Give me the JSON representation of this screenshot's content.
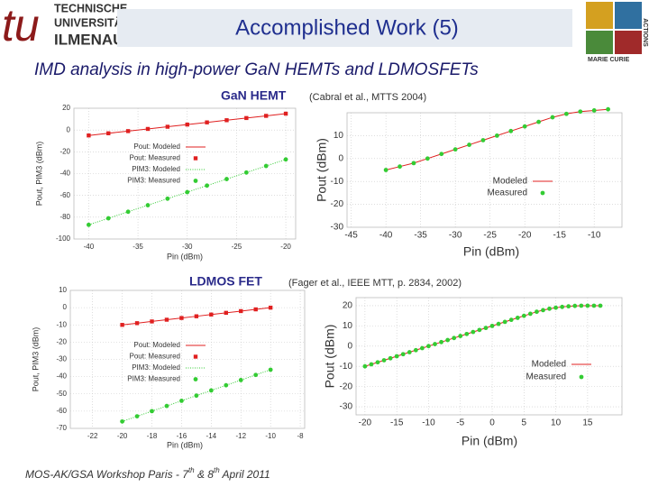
{
  "logo": {
    "lines": [
      "TECHNISCHE",
      "UNIVERSITÄT",
      "ILMENAU"
    ],
    "mark": "tu"
  },
  "partner_logo": {
    "lines": [
      "MARIE CURIE",
      "ACTIONS"
    ]
  },
  "title": "Accomplished Work (5)",
  "subtitle": "IMD analysis in high-power GaN HEMTs and LDMOSFETs",
  "sections": [
    {
      "label": "GaN HEMT",
      "source": "(Cabral et al., MTTS 2004)"
    },
    {
      "label": "LDMOS FET",
      "source": "(Fager et al., IEEE MTT, p. 2834, 2002)"
    }
  ],
  "footer": [
    "MOS-AK/GSA Workshop Paris - 7",
    "th",
    " & 8",
    "th",
    " April 2011"
  ],
  "chart_data": [
    {
      "type": "line",
      "xlabel": "Pin (dBm)",
      "ylabel": "Pout, PIM3 (dBm)",
      "xlim": [
        -41.5,
        -19
      ],
      "ylim": [
        -100,
        20
      ],
      "xticks": [
        -40,
        -35,
        -30,
        -25,
        -20
      ],
      "yticks": [
        -100,
        -80,
        -60,
        -40,
        -20,
        0,
        20
      ],
      "grid": true,
      "x": [
        -40,
        -38,
        -36,
        -34,
        -32,
        -30,
        -28,
        -26,
        -24,
        -22,
        -20
      ],
      "series": [
        {
          "name": "Pout: Modeled",
          "color": "#e02020",
          "style": "line",
          "values": [
            -5,
            -3,
            -1,
            1,
            3,
            5,
            7,
            9,
            11,
            13,
            15
          ]
        },
        {
          "name": "Pout: Measured",
          "color": "#e02020",
          "style": "square",
          "values": [
            -5,
            -3,
            -1,
            1,
            3,
            5,
            7,
            9,
            11,
            13,
            15
          ]
        },
        {
          "name": "PIM3: Modeled",
          "color": "#33cc33",
          "style": "dotted",
          "values": [
            -87,
            -81,
            -75,
            -69,
            -63,
            -57,
            -51,
            -45,
            -39,
            -33,
            -27
          ]
        },
        {
          "name": "PIM3: Measured",
          "color": "#33cc33",
          "style": "circle",
          "values": [
            -87,
            -81,
            -75,
            -69,
            -63,
            -57,
            -51,
            -45,
            -39,
            -33,
            -27
          ]
        }
      ]
    },
    {
      "type": "line",
      "xlabel": "Pin (dBm)",
      "ylabel": "Pout (dBm)",
      "xlim": [
        -45.6,
        -6
      ],
      "ylim": [
        -30,
        20
      ],
      "xticks": [
        -45,
        -40,
        -35,
        -30,
        -25,
        -20,
        -15,
        -10
      ],
      "yticks": [
        -30,
        -20,
        -10,
        0,
        10
      ],
      "grid": true,
      "x": [
        -40,
        -38,
        -36,
        -34,
        -32,
        -30,
        -28,
        -26,
        -24,
        -22,
        -20,
        -18,
        -16,
        -14,
        -12,
        -10,
        -8
      ],
      "series": [
        {
          "name": "Modeled",
          "color": "#e02020",
          "style": "line",
          "values": [
            -5,
            -3.5,
            -2,
            0,
            2,
            4,
            6,
            8,
            10,
            12,
            14,
            16,
            18,
            19.5,
            20.5,
            21,
            21.5
          ]
        },
        {
          "name": "Measured",
          "color": "#33cc33",
          "style": "circle",
          "values": [
            -5,
            -3.5,
            -2,
            0,
            2,
            4,
            6,
            8,
            10,
            12,
            14,
            16,
            18,
            19.5,
            20.5,
            21,
            21.5
          ]
        }
      ]
    },
    {
      "type": "line",
      "xlabel": "Pin (dBm)",
      "ylabel": "Pout, PIM3 (dBm)",
      "xlim": [
        -23.5,
        -7.7
      ],
      "ylim": [
        -70,
        10
      ],
      "xticks": [
        -22,
        -20,
        -18,
        -16,
        -14,
        -12,
        -10,
        -8
      ],
      "yticks": [
        -70,
        -60,
        -50,
        -40,
        -30,
        -20,
        -10,
        0,
        10
      ],
      "grid": true,
      "x": [
        -20,
        -19,
        -18,
        -17,
        -16,
        -15,
        -14,
        -13,
        -12,
        -11,
        -10
      ],
      "series": [
        {
          "name": "Pout: Modeled",
          "color": "#e02020",
          "style": "line",
          "values": [
            -10,
            -9,
            -8,
            -7,
            -6,
            -5,
            -4,
            -3,
            -2,
            -1,
            0
          ]
        },
        {
          "name": "Pout: Measured",
          "color": "#e02020",
          "style": "square",
          "values": [
            -10,
            -9,
            -8,
            -7,
            -6,
            -5,
            -4,
            -3,
            -2,
            -1,
            0
          ]
        },
        {
          "name": "PIM3: Modeled",
          "color": "#33cc33",
          "style": "dotted",
          "values": [
            -66,
            -63,
            -60,
            -57,
            -54,
            -51,
            -48,
            -45,
            -42,
            -39,
            -36
          ]
        },
        {
          "name": "PIM3: Measured",
          "color": "#33cc33",
          "style": "circle",
          "values": [
            -66,
            -63,
            -60,
            -57,
            -54,
            -51,
            -48,
            -45,
            -42,
            -39,
            -36
          ]
        }
      ]
    },
    {
      "type": "line",
      "xlabel": "Pin (dBm)",
      "ylabel": "Pout (dBm)",
      "xlim": [
        -21.4,
        20.4
      ],
      "ylim": [
        -34,
        24
      ],
      "xticks": [
        -20,
        -15,
        -10,
        -5,
        0,
        5,
        10,
        15
      ],
      "yticks": [
        -30,
        -20,
        -10,
        0,
        10,
        20
      ],
      "grid": true,
      "x": [
        -20,
        -19,
        -18,
        -17,
        -16,
        -15,
        -14,
        -13,
        -12,
        -11,
        -10,
        -9,
        -8,
        -7,
        -6,
        -5,
        -4,
        -3,
        -2,
        -1,
        0,
        1,
        2,
        3,
        4,
        5,
        6,
        7,
        8,
        9,
        10,
        11,
        12,
        13,
        14,
        15,
        16,
        17
      ],
      "series": [
        {
          "name": "Modeled",
          "color": "#e02020",
          "style": "line",
          "values": [
            -10,
            -9,
            -8,
            -7,
            -6,
            -5,
            -4,
            -3,
            -2,
            -1,
            0,
            1,
            2,
            3,
            4,
            5,
            6,
            7,
            8,
            9,
            10,
            11,
            12,
            13,
            14,
            15,
            16,
            17,
            17.8,
            18.5,
            19,
            19.4,
            19.7,
            19.9,
            20,
            20,
            20,
            20
          ]
        },
        {
          "name": "Measured",
          "color": "#33cc33",
          "style": "circle",
          "values": [
            -10,
            -9,
            -8,
            -7,
            -6,
            -5,
            -4,
            -3,
            -2,
            -1,
            0,
            1,
            2,
            3,
            4,
            5,
            6,
            7,
            8,
            9,
            10,
            11,
            12,
            13,
            14,
            15,
            16,
            17,
            17.8,
            18.5,
            19,
            19.4,
            19.7,
            19.9,
            20,
            20,
            20,
            20
          ]
        }
      ]
    }
  ]
}
